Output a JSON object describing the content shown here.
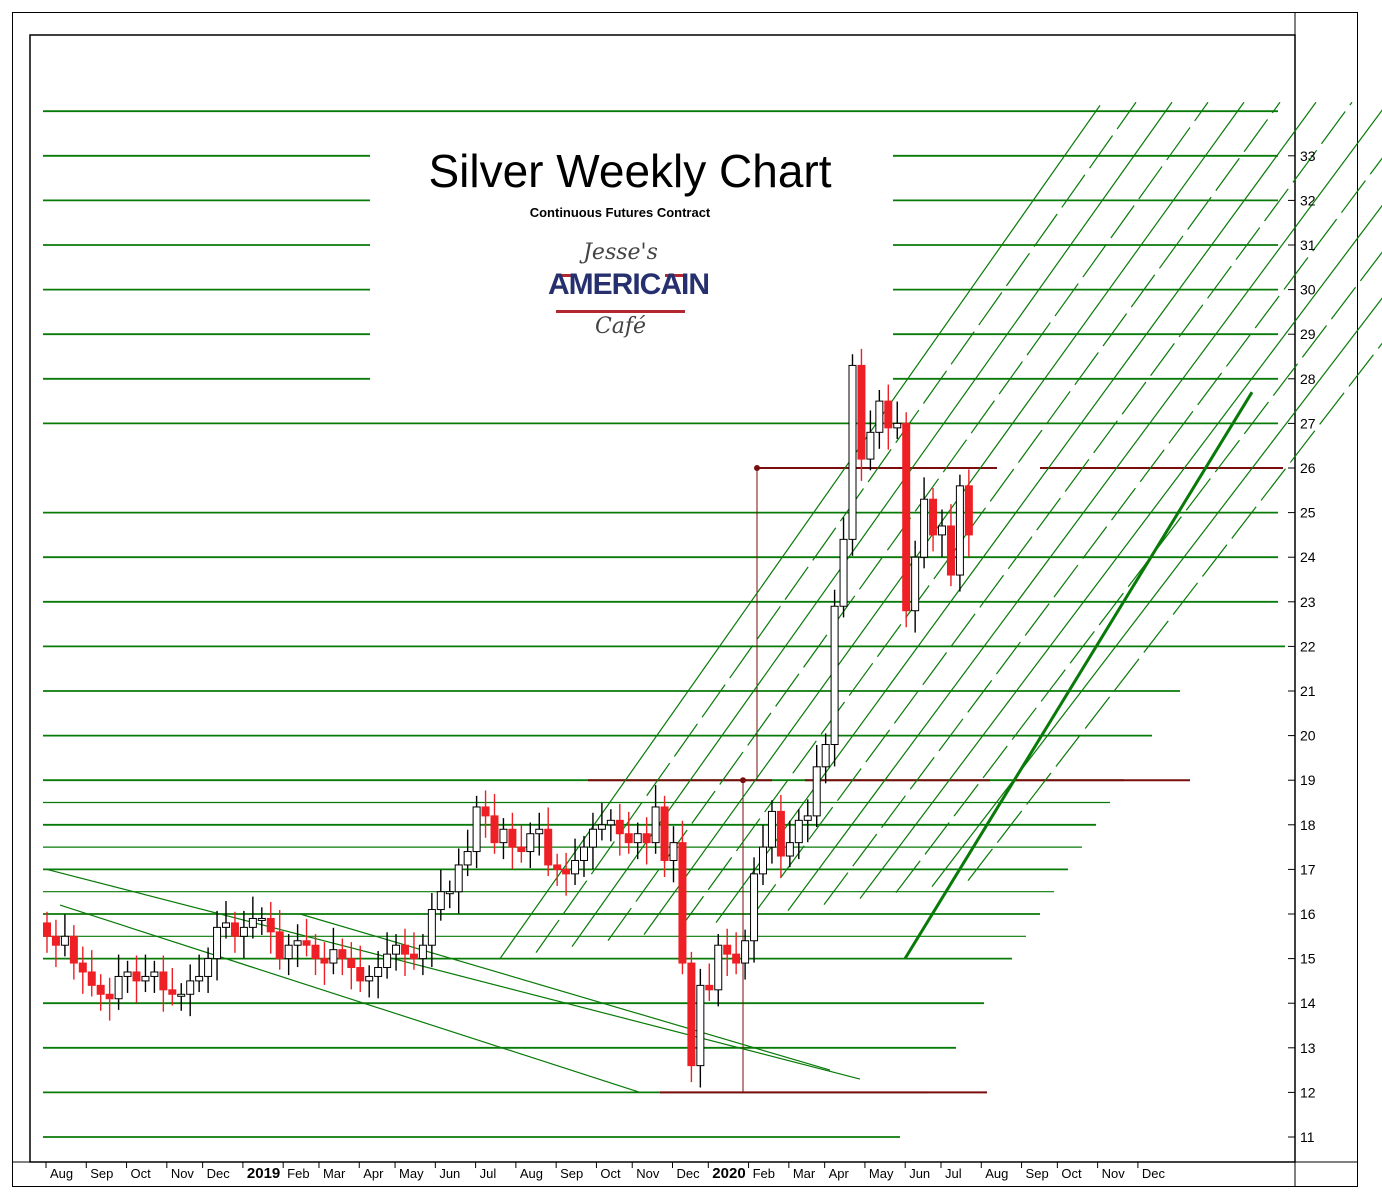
{
  "chart_data": {
    "type": "candlestick",
    "title": "Silver Weekly Chart",
    "subtitle": "Continuous Futures Contract",
    "logo": {
      "line1": "Jesse's",
      "line2": "AMERICAIN",
      "line3": "Café"
    },
    "y_ticks": [
      11,
      12,
      13,
      14,
      15,
      16,
      17,
      18,
      19,
      20,
      21,
      22,
      23,
      24,
      25,
      26,
      27,
      28,
      29,
      30,
      31,
      32,
      33
    ],
    "ylim": [
      10.6,
      35.4
    ],
    "x_axis": [
      {
        "label": "Aug",
        "w": 0,
        "bold": false
      },
      {
        "label": "Sep",
        "w": 4.5,
        "bold": false
      },
      {
        "label": "Oct",
        "w": 9,
        "bold": false
      },
      {
        "label": "Nov",
        "w": 13.5,
        "bold": false
      },
      {
        "label": "Dec",
        "w": 17.5,
        "bold": false
      },
      {
        "label": "2019",
        "w": 22,
        "bold": true
      },
      {
        "label": "Feb",
        "w": 26.5,
        "bold": false
      },
      {
        "label": "Mar",
        "w": 30.5,
        "bold": false
      },
      {
        "label": "Apr",
        "w": 35,
        "bold": false
      },
      {
        "label": "May",
        "w": 39,
        "bold": false
      },
      {
        "label": "Jun",
        "w": 43.5,
        "bold": false
      },
      {
        "label": "Jul",
        "w": 48,
        "bold": false
      },
      {
        "label": "Aug",
        "w": 52.5,
        "bold": false
      },
      {
        "label": "Sep",
        "w": 57,
        "bold": false
      },
      {
        "label": "Oct",
        "w": 61.5,
        "bold": false
      },
      {
        "label": "Nov",
        "w": 65.5,
        "bold": false
      },
      {
        "label": "Dec",
        "w": 70,
        "bold": false
      },
      {
        "label": "2020",
        "w": 74,
        "bold": true
      },
      {
        "label": "Feb",
        "w": 78.5,
        "bold": false
      },
      {
        "label": "Mar",
        "w": 83,
        "bold": false
      },
      {
        "label": "Apr",
        "w": 87,
        "bold": false
      },
      {
        "label": "May",
        "w": 91.5,
        "bold": false
      },
      {
        "label": "Jun",
        "w": 96,
        "bold": false
      },
      {
        "label": "Jul",
        "w": 100,
        "bold": false
      },
      {
        "label": "Aug",
        "w": 104.5,
        "bold": false
      },
      {
        "label": "Sep",
        "w": 109,
        "bold": false
      },
      {
        "label": "Oct",
        "w": 113,
        "bold": false
      },
      {
        "label": "Nov",
        "w": 117.5,
        "bold": false
      },
      {
        "label": "Dec",
        "w": 122,
        "bold": false
      }
    ],
    "closes": [
      15.5,
      15.3,
      15.5,
      14.9,
      14.7,
      14.4,
      14.2,
      14.1,
      14.6,
      14.7,
      14.5,
      14.6,
      14.7,
      14.3,
      14.2,
      14.2,
      14.5,
      14.6,
      15.0,
      15.7,
      15.8,
      15.5,
      15.7,
      15.9,
      15.9,
      15.6,
      15.0,
      15.3,
      15.4,
      15.3,
      15.0,
      14.9,
      15.2,
      15.0,
      14.8,
      14.5,
      14.6,
      14.8,
      15.1,
      15.3,
      15.1,
      15.0,
      15.3,
      16.1,
      16.5,
      16.5,
      17.1,
      17.4,
      18.4,
      18.2,
      17.6,
      17.9,
      17.5,
      17.4,
      17.8,
      17.9,
      17.1,
      17.0,
      16.9,
      17.2,
      17.5,
      17.9,
      18.0,
      18.1,
      17.8,
      17.6,
      17.8,
      17.6,
      18.4,
      17.2,
      17.6,
      14.9,
      12.6,
      14.4,
      14.3,
      15.3,
      15.1,
      14.9,
      15.4,
      16.9,
      17.5,
      18.3,
      17.3,
      17.6,
      18.1,
      18.2,
      19.3,
      19.8,
      22.9,
      24.4,
      28.3,
      26.2,
      26.8,
      27.5,
      26.9,
      27.0,
      22.8,
      24.0,
      25.3,
      24.5,
      24.7,
      23.6,
      25.6,
      24.5
    ],
    "support_lines": [
      33,
      32,
      31,
      30,
      29,
      28,
      27,
      25,
      24,
      23,
      22,
      21,
      20,
      19,
      18.5,
      18,
      17.5,
      17,
      16.5,
      16,
      15.5,
      15,
      14,
      13,
      12,
      11
    ],
    "resistance_lines": [
      26,
      19,
      12
    ],
    "measured_moves": [
      {
        "from": 12,
        "to": 19
      },
      {
        "from": 19,
        "to": 26
      }
    ],
    "trend_channels": 14,
    "colors": {
      "up": "#ffffff",
      "down": "#ee1f25",
      "support": "#087a08",
      "resistance": "#7a0e0e"
    },
    "grid": false
  }
}
